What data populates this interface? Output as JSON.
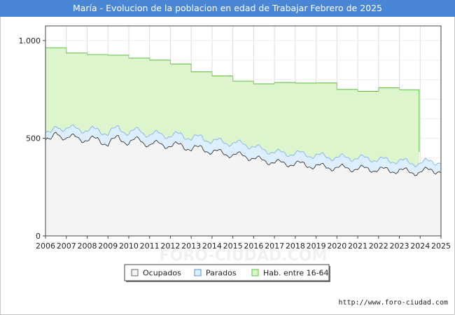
{
  "chart_data": {
    "type": "area",
    "title": "María - Evolucion de la poblacion en edad de Trabajar Febrero de 2025",
    "xlabel": "",
    "ylabel": "",
    "xlim": [
      2006,
      2025
    ],
    "ylim": [
      0,
      1075
    ],
    "y_ticks": [
      0,
      500,
      1000
    ],
    "y_tick_labels": [
      "0",
      "500",
      "1.000"
    ],
    "x_tick_labels": [
      "2006",
      "2007",
      "2008",
      "2009",
      "2010",
      "2011",
      "2012",
      "2013",
      "2014",
      "2015",
      "2016",
      "2017",
      "2018",
      "2019",
      "2020",
      "2021",
      "2022",
      "2023",
      "2024",
      "2025"
    ],
    "grid": true,
    "series": [
      {
        "name": "Hab. entre 16-64",
        "kind": "step-yearly",
        "years": [
          2006,
          2007,
          2008,
          2009,
          2010,
          2011,
          2012,
          2013,
          2014,
          2015,
          2016,
          2017,
          2018,
          2019,
          2020,
          2021,
          2022,
          2023
        ],
        "values": [
          963,
          936,
          928,
          925,
          910,
          900,
          880,
          840,
          819,
          792,
          778,
          785,
          782,
          783,
          750,
          740,
          758,
          748
        ],
        "drop_year": 2023.95,
        "drop_value": 430
      },
      {
        "name": "Parados",
        "kind": "monthly-interpolated",
        "anchors_x": [
          2006,
          2006.3,
          2006.5,
          2007,
          2007.5,
          2008,
          2008.5,
          2009,
          2009.5,
          2010,
          2010.5,
          2011,
          2011.5,
          2012,
          2012.5,
          2013,
          2013.5,
          2014,
          2014.5,
          2015,
          2015.5,
          2016,
          2016.5,
          2017,
          2017.5,
          2018,
          2018.5,
          2019,
          2019.5,
          2020,
          2020.5,
          2021,
          2021.5,
          2022,
          2022.5,
          2023,
          2023.5,
          2024,
          2024.5,
          2025
        ],
        "anchors_y": [
          525,
          520,
          565,
          545,
          555,
          535,
          548,
          520,
          560,
          520,
          548,
          510,
          530,
          505,
          525,
          495,
          510,
          480,
          488,
          470,
          475,
          455,
          440,
          430,
          420,
          425,
          415,
          412,
          405,
          402,
          400,
          400,
          395,
          392,
          385,
          385,
          375,
          370,
          385,
          375
        ]
      },
      {
        "name": "Ocupados",
        "kind": "monthly-interpolated",
        "anchors_x": [
          2006,
          2006.3,
          2006.5,
          2007,
          2007.5,
          2008,
          2008.5,
          2009,
          2009.5,
          2010,
          2010.5,
          2011,
          2011.5,
          2012,
          2012.5,
          2013,
          2013.5,
          2014,
          2014.5,
          2015,
          2015.5,
          2016,
          2016.5,
          2017,
          2017.5,
          2018,
          2018.5,
          2019,
          2019.5,
          2020,
          2020.5,
          2021,
          2021.5,
          2022,
          2022.5,
          2023,
          2023.5,
          2024,
          2024.5,
          2025
        ],
        "anchors_y": [
          490,
          485,
          535,
          495,
          510,
          485,
          500,
          465,
          510,
          470,
          500,
          460,
          478,
          455,
          470,
          440,
          455,
          425,
          430,
          410,
          415,
          395,
          385,
          378,
          368,
          372,
          362,
          358,
          352,
          350,
          346,
          345,
          342,
          340,
          335,
          335,
          328,
          325,
          340,
          330
        ]
      }
    ],
    "legend": {
      "placement": "bottom-center",
      "entries": [
        {
          "label": "Ocupados",
          "fill": "#f4f4f4",
          "stroke": "#666666"
        },
        {
          "label": "Parados",
          "fill": "#ddeeff",
          "stroke": "#5a8fd0"
        },
        {
          "label": "Hab. entre 16-64",
          "fill": "#ddf5cc",
          "stroke": "#5cbf3c"
        }
      ]
    },
    "colors": {
      "hab_fill": "#ddf5cc",
      "hab_stroke": "#5cbf3c",
      "parados_fill": "#ddeeff",
      "parados_stroke": "#8ab8ec",
      "ocupados_fill": "#f4f4f4",
      "ocupados_stroke": "#222222",
      "title_bg": "#4a86d6"
    },
    "watermark": "FORO-CIUDAD.COM",
    "source": "http://www.foro-ciudad.com"
  }
}
